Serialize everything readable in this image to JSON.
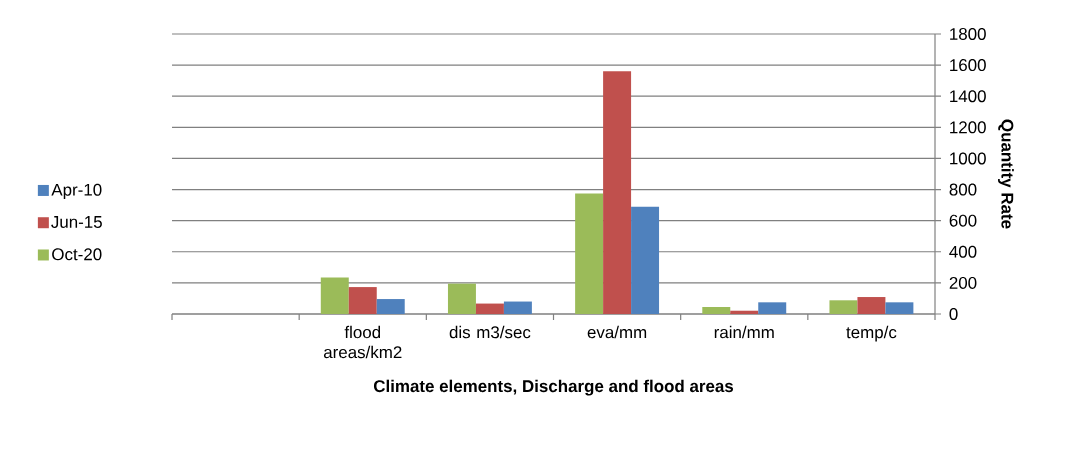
{
  "chart_data": {
    "type": "bar",
    "xlabel": "Climate elements, Discharge  and flood areas",
    "ylabel": "Quantity Rate",
    "categories": [
      null,
      "flood areas/km2",
      "dis m3/sec",
      "eva/mm",
      "rain/mm",
      "temp/c"
    ],
    "series": [
      {
        "name": "Oct-20",
        "color": "#9bbb59",
        "values": [
          null,
          235,
          195,
          774,
          45,
          88
        ]
      },
      {
        "name": "Jun-15",
        "color": "#c0504d",
        "values": [
          null,
          173,
          67,
          1561,
          21,
          109
        ]
      },
      {
        "name": "Apr-10",
        "color": "#4f81bd",
        "values": [
          null,
          96,
          80,
          690,
          75,
          75
        ]
      }
    ],
    "ylim": [
      0,
      1800
    ],
    "yticks": [
      0,
      200,
      400,
      600,
      800,
      1000,
      1200,
      1400,
      1600,
      1800
    ],
    "grid": "y",
    "legend": "left"
  }
}
